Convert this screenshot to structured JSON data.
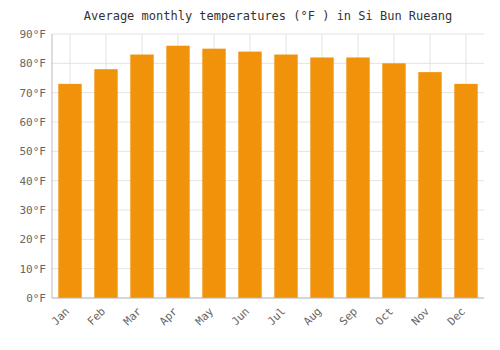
{
  "chart_data": {
    "type": "bar",
    "title": "Average monthly temperatures (°F ) in Si Bun Rueang",
    "categories": [
      "Jan",
      "Feb",
      "Mar",
      "Apr",
      "May",
      "Jun",
      "Jul",
      "Aug",
      "Sep",
      "Oct",
      "Nov",
      "Dec"
    ],
    "values": [
      73,
      78,
      83,
      86,
      85,
      84,
      83,
      82,
      82,
      80,
      77,
      73
    ],
    "color": "#F0920A",
    "ylim": [
      0,
      90
    ],
    "yticks": [
      {
        "value": 0,
        "label": "0°F"
      },
      {
        "value": 10,
        "label": "10°F"
      },
      {
        "value": 20,
        "label": "20°F"
      },
      {
        "value": 30,
        "label": "30°F"
      },
      {
        "value": 40,
        "label": "40°F"
      },
      {
        "value": 50,
        "label": "50°F"
      },
      {
        "value": 60,
        "label": "60°F"
      },
      {
        "value": 70,
        "label": "70°F"
      },
      {
        "value": 80,
        "label": "80°F"
      },
      {
        "value": 90,
        "label": "90°F"
      }
    ],
    "grid": true
  }
}
